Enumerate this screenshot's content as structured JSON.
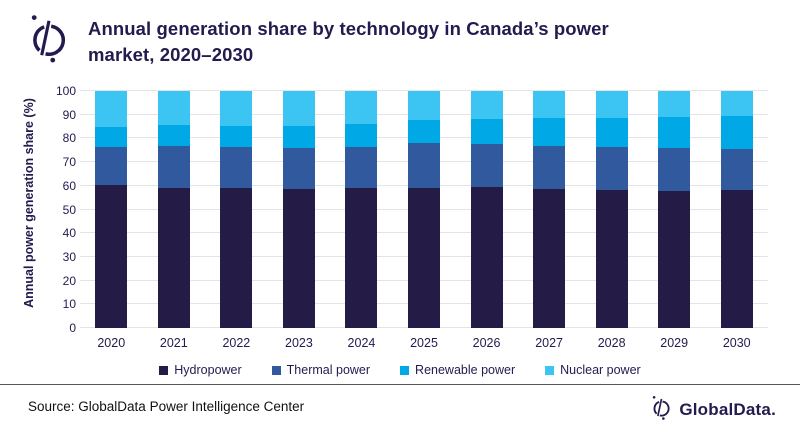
{
  "header": {
    "title_line1": "Annual generation share by technology in Canada’s power",
    "title_line2": "market, 2020–2030",
    "logo_icon": "globaldata-logo"
  },
  "chart_data": {
    "type": "bar",
    "stacked": true,
    "title": "Annual generation share by technology in Canada’s power market, 2020–2030",
    "xlabel": "",
    "ylabel": "Annual power generation share (%)",
    "ylim": [
      0,
      100
    ],
    "yticks": [
      0,
      10,
      20,
      30,
      40,
      50,
      60,
      70,
      80,
      90,
      100
    ],
    "grid": true,
    "legend_position": "bottom",
    "categories": [
      "2020",
      "2021",
      "2022",
      "2023",
      "2024",
      "2025",
      "2026",
      "2027",
      "2028",
      "2029",
      "2030"
    ],
    "series": [
      {
        "name": "Hydropower",
        "color": "#241b47",
        "values": [
          60.4,
          59.2,
          58.9,
          58.7,
          59.0,
          59.1,
          59.3,
          58.7,
          58.3,
          58.0,
          58.3
        ]
      },
      {
        "name": "Thermal power",
        "color": "#30599e",
        "values": [
          16.1,
          17.8,
          17.6,
          17.4,
          17.3,
          18.8,
          18.3,
          18.2,
          18.2,
          17.9,
          17.2
        ]
      },
      {
        "name": "Renewable power",
        "color": "#00a8e6",
        "values": [
          8.3,
          8.5,
          8.7,
          9.1,
          9.8,
          10.0,
          10.7,
          11.6,
          12.1,
          13.0,
          13.8
        ]
      },
      {
        "name": "Nuclear power",
        "color": "#3cc5f2",
        "values": [
          15.2,
          14.5,
          14.8,
          14.8,
          13.9,
          12.1,
          11.7,
          11.5,
          11.4,
          11.1,
          10.7
        ]
      }
    ]
  },
  "footer": {
    "source": "Source: GlobalData Power Intelligence Center",
    "brand": "GlobalData.",
    "brand_icon": "globaldata-logo"
  },
  "colors": {
    "navy": "#221b4e",
    "gridline": "#e4e4e7",
    "divider": "#55555a",
    "background": "#ffffff"
  }
}
